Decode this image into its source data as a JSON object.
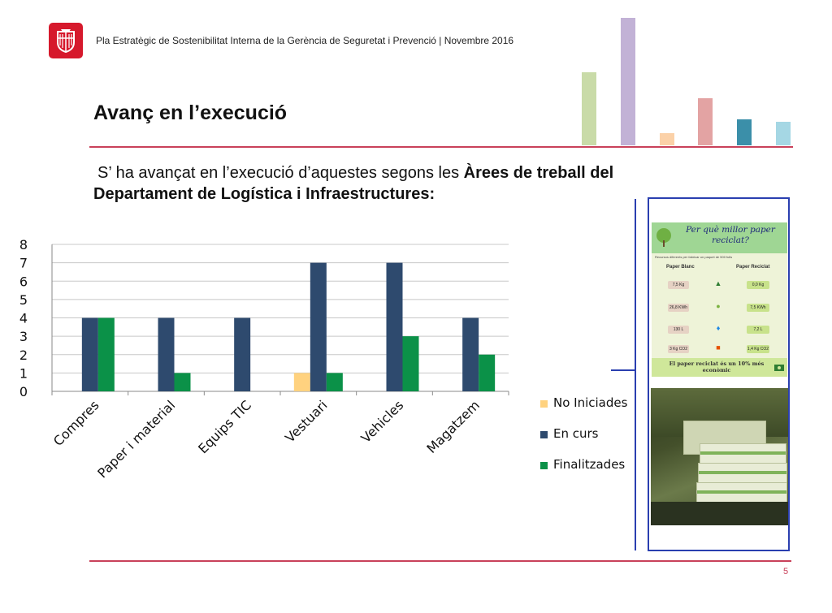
{
  "header": {
    "text": "Pla Estratègic de Sostenibilitat Interna de la Gerència de Seguretat i Prevenció | Novembre 2016"
  },
  "title": "Avanç en l’execució",
  "intro": {
    "normal": "S’ ha avançat en l’execució d’aquestes segons les ",
    "bold": "Àrees de treball del Departament de Logística i Infraestructures:"
  },
  "colors": {
    "accent": "#c9415a",
    "logo": "#d6192c",
    "frame": "#2a3fb0",
    "no_iniciades": "#ffd27f",
    "en_curs": "#2e4a6e",
    "finalitzades": "#0b9148"
  },
  "chart_data": {
    "type": "bar",
    "categories": [
      "Compres",
      "Paper i material",
      "Equips TIC",
      "Vestuari",
      "Vehicles",
      "Magatzem"
    ],
    "series": [
      {
        "name": "No Iniciades",
        "values": [
          0,
          0,
          0,
          1,
          0,
          0
        ],
        "color": "#ffd27f"
      },
      {
        "name": "En curs",
        "values": [
          4,
          4,
          4,
          7,
          7,
          4
        ],
        "color": "#2e4a6e"
      },
      {
        "name": "Finalitzades",
        "values": [
          4,
          1,
          0,
          1,
          3,
          2
        ],
        "color": "#0b9148"
      }
    ],
    "ylim": [
      0,
      8
    ],
    "yticks": [
      "0",
      "1",
      "2",
      "3",
      "4",
      "5",
      "6",
      "7",
      "8"
    ],
    "grid": true,
    "legend_position": "right"
  },
  "decor_bars": {
    "values": [
      5.9,
      10.3,
      1.0,
      3.8,
      2.1,
      1.9
    ],
    "colors": [
      "#c9dba8",
      "#c2b2d6",
      "#fbd1a8",
      "#e3a3a3",
      "#3b8fa9",
      "#a5d7e4"
    ]
  },
  "poster": {
    "title": "Per què millor paper reciclat?",
    "subtitle": "Recursos diferents per fabricar un paquet de 500 fulls",
    "col_left": "Paper Blanc",
    "col_right": "Paper Reciclat",
    "rows": [
      {
        "left": "7,5 Kg",
        "right": "0,0 Kg",
        "icon": "tree-icon"
      },
      {
        "left": "26,8 KWh",
        "right": "7,5 KWh",
        "icon": "bulb-icon"
      },
      {
        "left": "130 L",
        "right": "7,2 L",
        "icon": "drop-icon"
      },
      {
        "left": "3 Kg CO2",
        "right": "1,4 Kg CO2",
        "icon": "factory-icon"
      }
    ],
    "footer": "El paper reciclat és un 10% més econòmic"
  },
  "page_number": "5"
}
